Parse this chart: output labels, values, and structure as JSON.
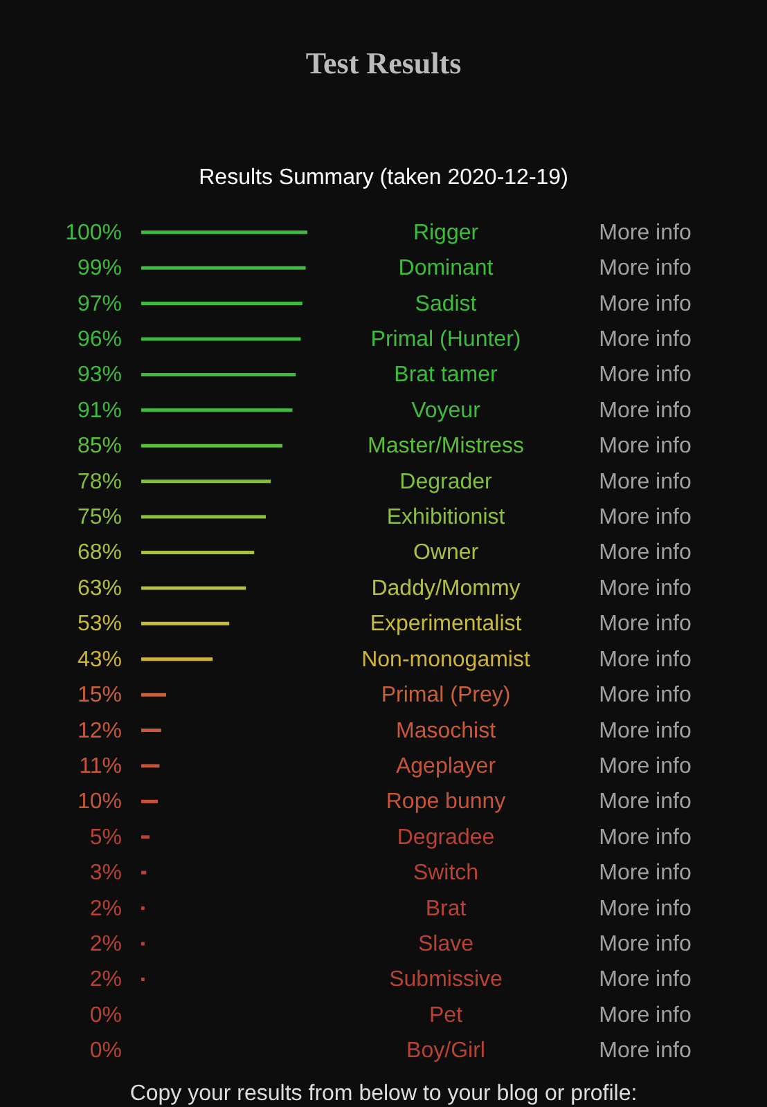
{
  "chart_data": {
    "type": "bar",
    "orientation": "horizontal",
    "title": "Test Results",
    "subtitle": "Results Summary (taken 2020-12-19)",
    "categories": [
      "Rigger",
      "Dominant",
      "Sadist",
      "Primal (Hunter)",
      "Brat tamer",
      "Voyeur",
      "Master/Mistress",
      "Degrader",
      "Exhibitionist",
      "Owner",
      "Daddy/Mommy",
      "Experimentalist",
      "Non-monogamist",
      "Primal (Prey)",
      "Masochist",
      "Ageplayer",
      "Rope bunny",
      "Degradee",
      "Switch",
      "Brat",
      "Slave",
      "Submissive",
      "Pet",
      "Boy/Girl"
    ],
    "values": [
      100,
      99,
      97,
      96,
      93,
      91,
      85,
      78,
      75,
      68,
      63,
      53,
      43,
      15,
      12,
      11,
      10,
      5,
      3,
      2,
      2,
      2,
      0,
      0
    ],
    "value_labels": [
      "100%",
      "99%",
      "97%",
      "96%",
      "93%",
      "91%",
      "85%",
      "78%",
      "75%",
      "68%",
      "63%",
      "53%",
      "43%",
      "15%",
      "12%",
      "11%",
      "10%",
      "5%",
      "3%",
      "2%",
      "2%",
      "2%",
      "0%",
      "0%"
    ],
    "colors": [
      "#3dbb3d",
      "#3dbb3d",
      "#3dbb3d",
      "#3dbb3d",
      "#3dbb3d",
      "#40bb3d",
      "#5cbf3a",
      "#7fbf3c",
      "#8cbf3d",
      "#a8c040",
      "#b5c042",
      "#c8bb3c",
      "#cfb437",
      "#c8603a",
      "#c85a3a",
      "#c4553a",
      "#c4553a",
      "#b84233",
      "#b84233",
      "#b84233",
      "#b84233",
      "#b84233",
      "#b84233",
      "#b84233"
    ],
    "xlim": [
      0,
      100
    ],
    "annotations": [
      "More info",
      "More info",
      "More info",
      "More info",
      "More info",
      "More info",
      "More info",
      "More info",
      "More info",
      "More info",
      "More info",
      "More info",
      "More info",
      "More info",
      "More info",
      "More info",
      "More info",
      "More info",
      "More info",
      "More info",
      "More info",
      "More info",
      "More info",
      "More info",
      "Copy your results from below to your blog or profile:"
    ]
  }
}
